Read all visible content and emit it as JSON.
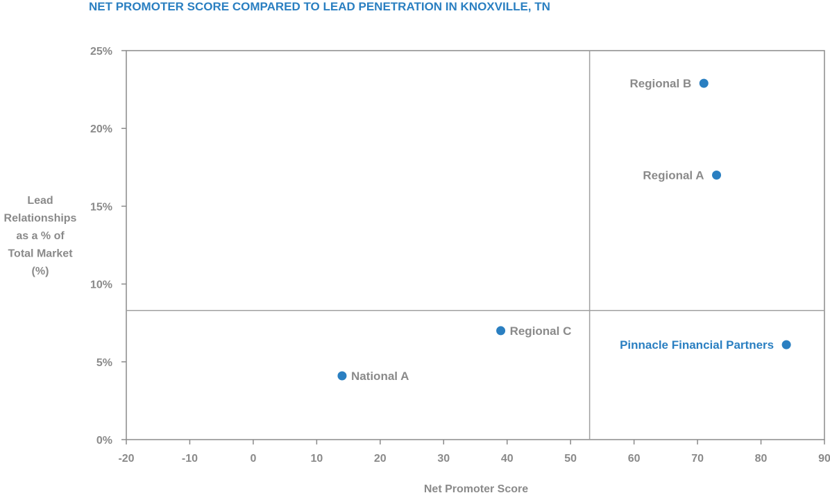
{
  "chart_data": {
    "type": "scatter",
    "title": "NET PROMOTER SCORE COMPARED TO LEAD PENETRATION IN KNOXVILLE, TN",
    "xlabel": "Net Promoter Score",
    "ylabel_lines": [
      "Lead",
      "Relationships",
      "as a % of",
      "Total Market",
      "(%)"
    ],
    "xlim": [
      -20,
      90
    ],
    "ylim": [
      0,
      25
    ],
    "x_ticks": [
      -20,
      -10,
      0,
      10,
      20,
      30,
      40,
      50,
      60,
      70,
      80,
      90
    ],
    "y_ticks": [
      0,
      5,
      10,
      15,
      20,
      25
    ],
    "y_tick_labels": [
      "0%",
      "5%",
      "10%",
      "15%",
      "20%",
      "25%"
    ],
    "quadrant_dividers": {
      "x": 53,
      "y": 8.3
    },
    "grid": false,
    "points": [
      {
        "label": "Regional B",
        "x": 71,
        "y": 22.9,
        "label_side": "left",
        "highlight": false
      },
      {
        "label": "Regional A",
        "x": 73,
        "y": 17.0,
        "label_side": "left",
        "highlight": false
      },
      {
        "label": "Regional C",
        "x": 39,
        "y": 7.0,
        "label_side": "right",
        "highlight": false
      },
      {
        "label": "Pinnacle Financial Partners",
        "x": 84,
        "y": 6.1,
        "label_side": "left",
        "highlight": true
      },
      {
        "label": "National A",
        "x": 14,
        "y": 4.1,
        "label_side": "right",
        "highlight": false
      }
    ]
  },
  "colors": {
    "title": "#2a7fc1",
    "point": "#2a7fc1",
    "highlight_label": "#2a7fc1",
    "text": "#8a8a8a",
    "axis": "#8a8a8a",
    "divider": "#a0a0a0"
  }
}
